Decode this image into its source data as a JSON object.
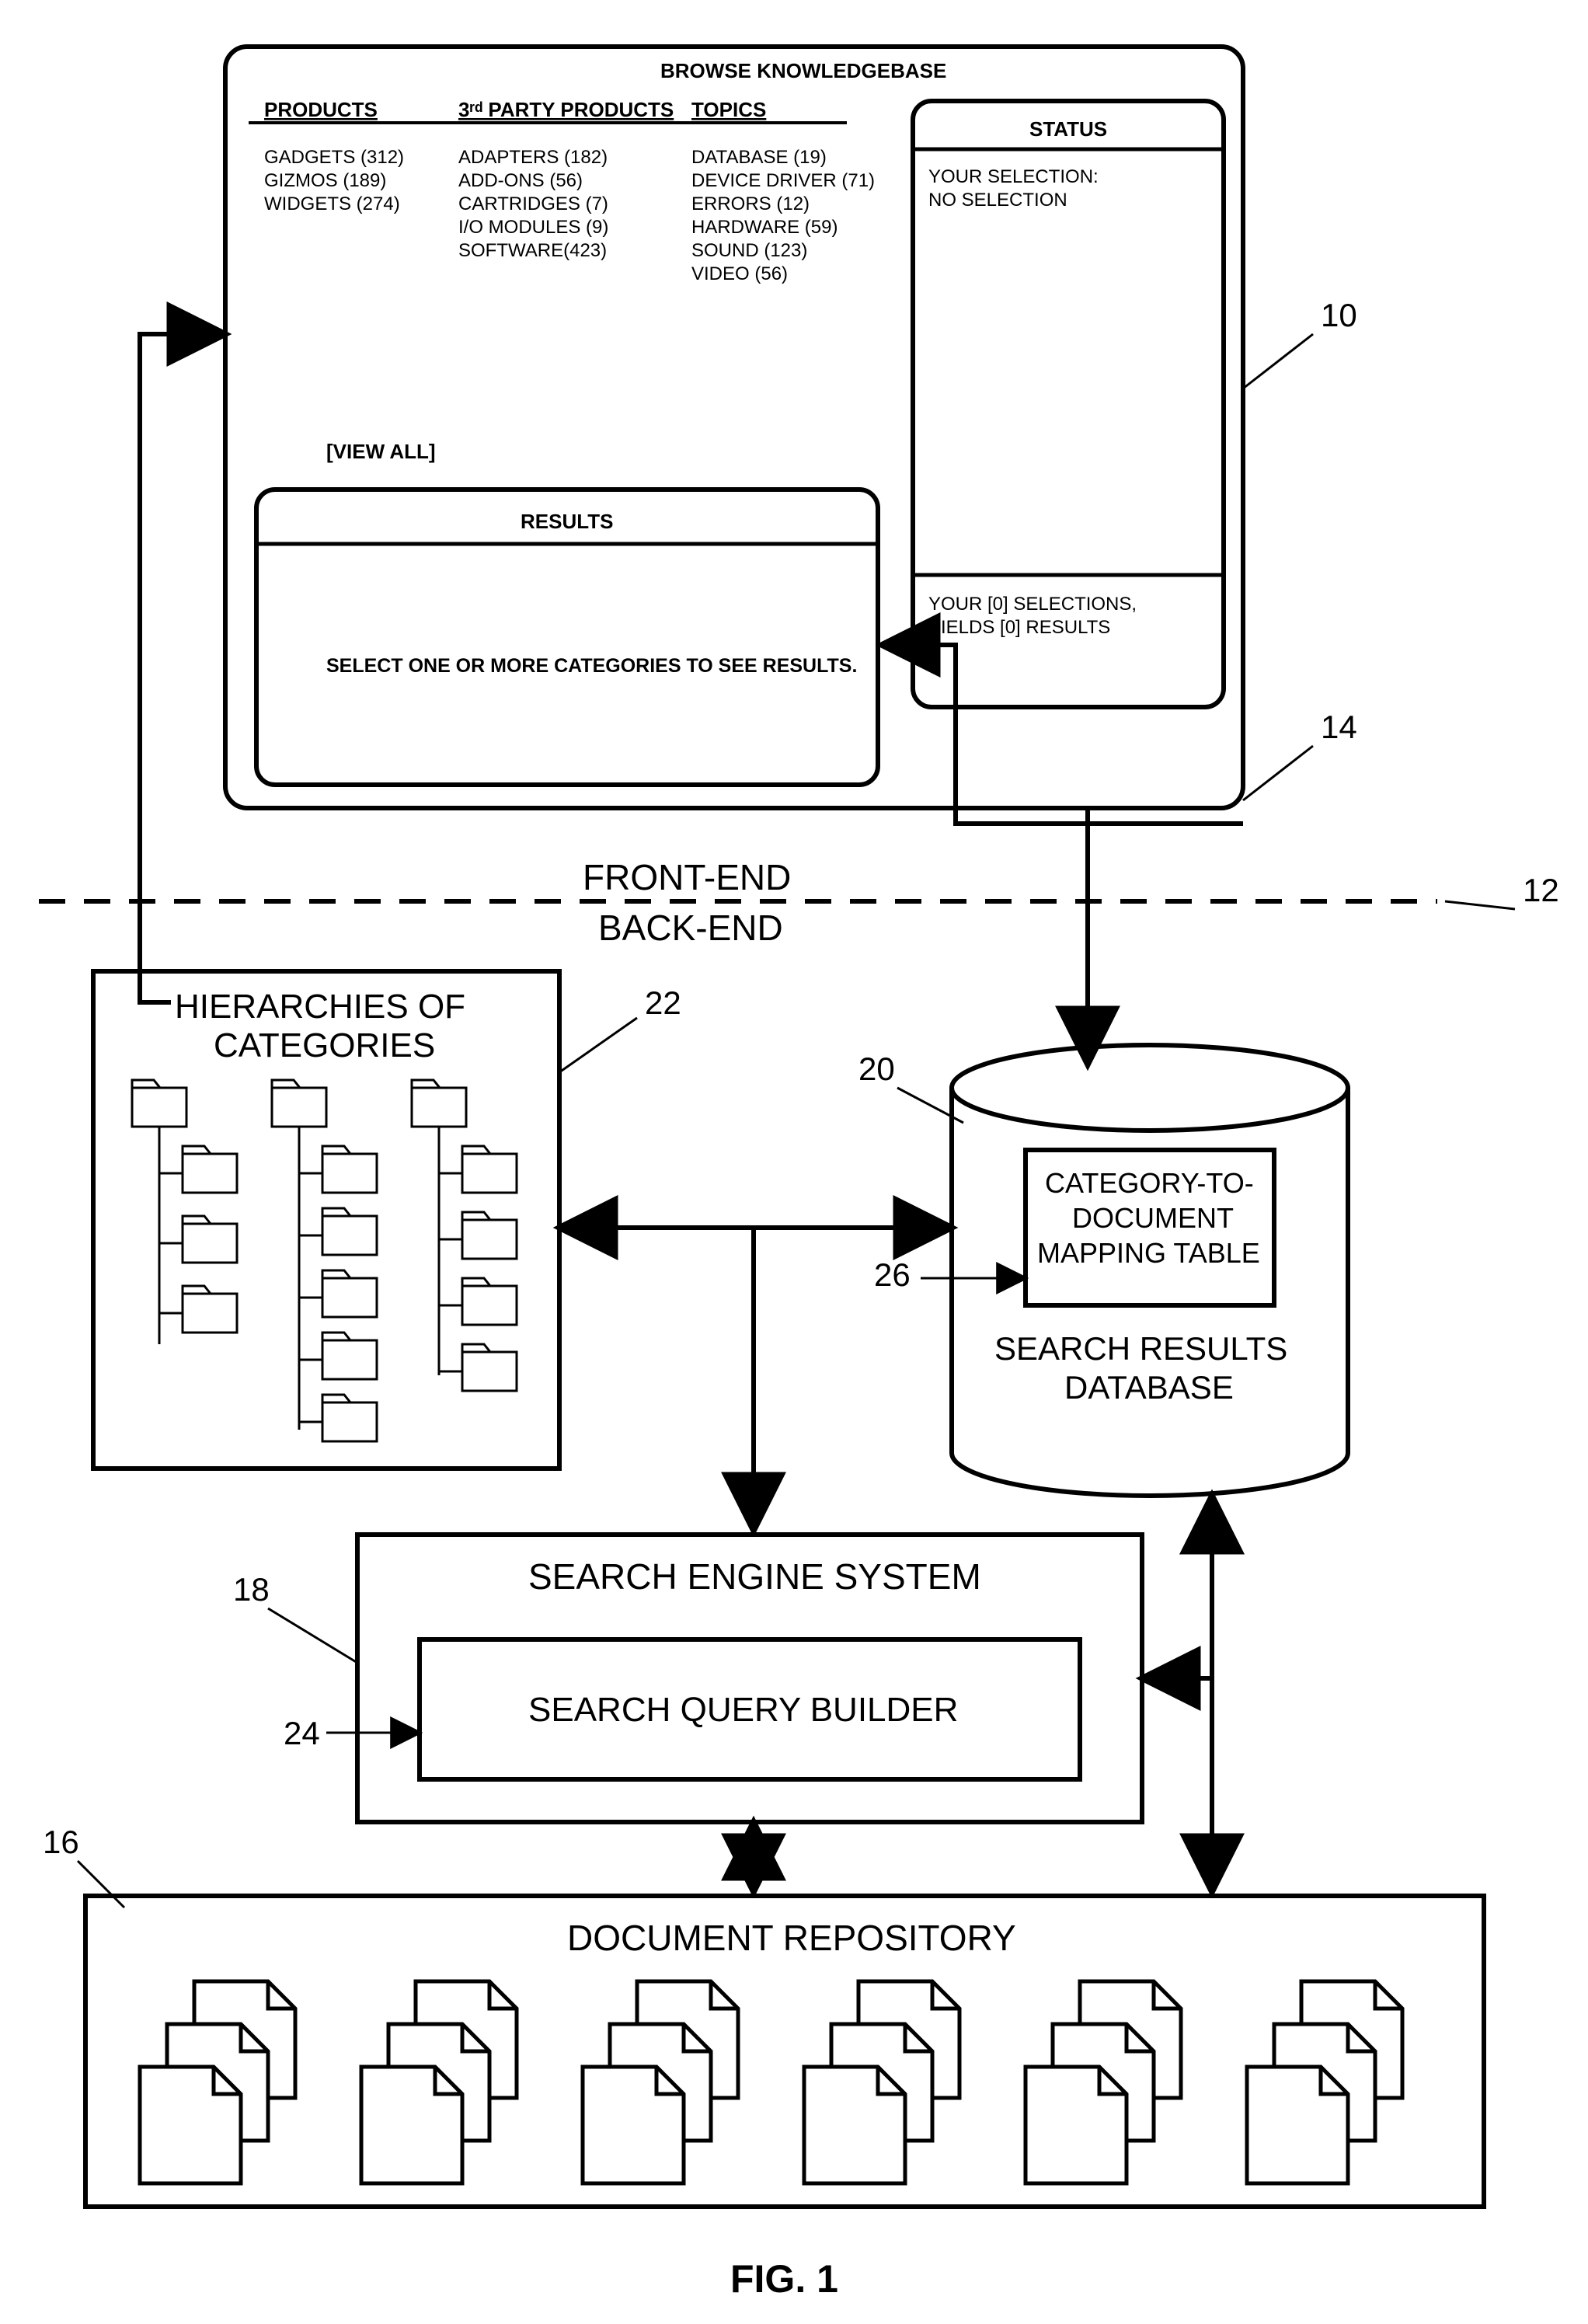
{
  "figure_label": "FIG. 1",
  "stroke_color": "#000000",
  "bg_color": "#ffffff",
  "stroke_width_main": 6,
  "stroke_width_inner": 5,
  "border_radius": 28,
  "browse_panel": {
    "title": "BROWSE KNOWLEDGEBASE",
    "col1_header": "PRODUCTS",
    "col2_header": "3ʳᵈ PARTY PRODUCTS",
    "col3_header": "TOPICS",
    "col1_items": [
      "GADGETS (312)",
      "GIZMOS (189)",
      "WIDGETS (274)"
    ],
    "col2_items": [
      "ADAPTERS (182)",
      "ADD-ONS (56)",
      "CARTRIDGES (7)",
      "I/O MODULES (9)",
      "SOFTWARE(423)"
    ],
    "col3_items": [
      "DATABASE (19)",
      "DEVICE DRIVER (71)",
      "ERRORS (12)",
      "HARDWARE (59)",
      "SOUND (123)",
      "VIDEO (56)"
    ],
    "view_all": "[VIEW ALL]",
    "results_title": "RESULTS",
    "results_body": "SELECT ONE OR MORE CATEGORIES TO SEE RESULTS."
  },
  "status_panel": {
    "title": "STATUS",
    "line1": "YOUR SELECTION:",
    "line2": "NO SELECTION",
    "footer1": "YOUR [0] SELECTIONS,",
    "footer2": "YIELDS [0] RESULTS"
  },
  "divider": {
    "front_label": "FRONT-END",
    "back_label": "BACK-END"
  },
  "hierarchies": {
    "title1": "HIERARCHIES OF",
    "title2": "CATEGORIES"
  },
  "search_engine": {
    "title": "SEARCH ENGINE SYSTEM",
    "inner": "SEARCH QUERY BUILDER"
  },
  "doc_repo": {
    "title": "DOCUMENT REPOSITORY"
  },
  "db": {
    "label1": "CATEGORY-TO-",
    "label2": "DOCUMENT",
    "label3": "MAPPING TABLE",
    "name1": "SEARCH RESULTS",
    "name2": "DATABASE"
  },
  "ref_numerals": {
    "r10": "10",
    "r12": "12",
    "r14": "14",
    "r16": "16",
    "r18": "18",
    "r20": "20",
    "r22": "22",
    "r24": "24",
    "r26": "26"
  }
}
